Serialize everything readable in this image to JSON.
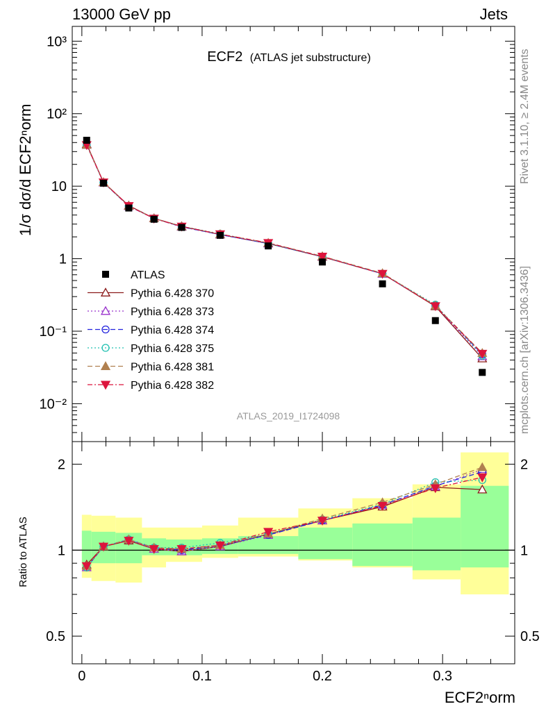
{
  "header": {
    "energy_label": "13000 GeV pp",
    "process_label": "Jets"
  },
  "side_labels": {
    "rivet": "Rivet 3.1.10, ≥ 2.4M events",
    "mcplots": "mcplots.cern.ch [arXiv:1306.3436]"
  },
  "chart_data": [
    {
      "type": "line",
      "panel": "main",
      "title": "ECF2",
      "subtitle": "(ATLAS jet substructure)",
      "ylabel": "1/σ dσ/d ECF2ⁿorm",
      "yscale": "log",
      "ylim": [
        0.003,
        1600
      ],
      "xlim": [
        -0.008,
        0.36
      ],
      "yticks": [
        "10⁻²",
        "10⁻¹",
        "1",
        "10",
        "10²",
        "10³"
      ],
      "watermark": "ATLAS_2019_I1724098",
      "legend_position": "left-middle",
      "x": [
        0.004,
        0.018,
        0.039,
        0.06,
        0.083,
        0.115,
        0.155,
        0.2,
        0.25,
        0.294,
        0.333
      ],
      "data_series": {
        "name": "ATLAS",
        "color": "#000000",
        "values": [
          43,
          11,
          5.0,
          3.5,
          2.7,
          2.1,
          1.5,
          0.9,
          0.45,
          0.14,
          0.027
        ]
      },
      "series": [
        {
          "name": "Pythia 6.428 370",
          "color": "#8b1a1a",
          "dash": "solid",
          "marker": "triangle-up-open",
          "values": [
            38,
            11.3,
            5.4,
            3.6,
            2.8,
            2.15,
            1.62,
            1.06,
            0.62,
            0.22,
            0.042
          ]
        },
        {
          "name": "Pythia 6.428 373",
          "color": "#9932cc",
          "dash": "dotted",
          "marker": "triangle-up-open",
          "values": [
            37,
            11.2,
            5.3,
            3.6,
            2.75,
            2.15,
            1.62,
            1.07,
            0.62,
            0.225,
            0.045
          ]
        },
        {
          "name": "Pythia 6.428 374",
          "color": "#2222dd",
          "dash": "dashed",
          "marker": "circle-open",
          "values": [
            37,
            11.2,
            5.3,
            3.6,
            2.75,
            2.15,
            1.62,
            1.07,
            0.62,
            0.225,
            0.048
          ]
        },
        {
          "name": "Pythia 6.428 375",
          "color": "#20c0b0",
          "dash": "dotted",
          "marker": "circle-open",
          "values": [
            37,
            11.2,
            5.35,
            3.6,
            2.8,
            2.2,
            1.62,
            1.07,
            0.62,
            0.232,
            0.046
          ]
        },
        {
          "name": "Pythia 6.428 381",
          "color": "#b08050",
          "dash": "dashed",
          "marker": "triangle-up-filled",
          "values": [
            37,
            11.3,
            5.35,
            3.6,
            2.78,
            2.18,
            1.65,
            1.08,
            0.63,
            0.225,
            0.05
          ]
        },
        {
          "name": "Pythia 6.428 382",
          "color": "#dc143c",
          "dash": "dashdot",
          "marker": "triangle-down-filled",
          "values": [
            37,
            11.3,
            5.35,
            3.58,
            2.78,
            2.18,
            1.65,
            1.07,
            0.62,
            0.222,
            0.049
          ]
        }
      ]
    },
    {
      "type": "line",
      "panel": "ratio",
      "ylabel": "Ratio to ATLAS",
      "xlabel": "ECF2ⁿorm",
      "yscale": "log",
      "ylim": [
        0.4,
        2.4
      ],
      "yticks": [
        "0.5",
        "1",
        "2"
      ],
      "xticks": [
        "0",
        "0.1",
        "0.2",
        "0.3"
      ],
      "bands": {
        "edges": [
          0,
          0.008,
          0.028,
          0.05,
          0.07,
          0.1,
          0.13,
          0.18,
          0.225,
          0.275,
          0.315,
          0.355
        ],
        "green_lo": [
          0.88,
          0.9,
          0.9,
          0.96,
          0.96,
          0.97,
          0.97,
          0.93,
          0.88,
          0.85,
          0.87
        ],
        "green_hi": [
          1.17,
          1.16,
          1.15,
          1.1,
          1.09,
          1.1,
          1.12,
          1.2,
          1.24,
          1.3,
          1.68
        ],
        "yellow_lo": [
          0.8,
          0.78,
          0.77,
          0.87,
          0.91,
          0.94,
          0.95,
          0.92,
          0.87,
          0.79,
          0.7
        ],
        "yellow_hi": [
          1.33,
          1.32,
          1.3,
          1.2,
          1.2,
          1.22,
          1.3,
          1.4,
          1.52,
          1.7,
          2.2
        ]
      },
      "x": [
        0.004,
        0.018,
        0.039,
        0.06,
        0.083,
        0.115,
        0.155,
        0.2,
        0.25,
        0.294,
        0.333
      ],
      "series": [
        {
          "name": "Pythia 6.428 370",
          "values": [
            0.89,
            1.03,
            1.08,
            1.01,
            0.99,
            1.03,
            1.14,
            1.27,
            1.42,
            1.66,
            1.63
          ]
        },
        {
          "name": "Pythia 6.428 373",
          "values": [
            0.87,
            1.03,
            1.09,
            1.01,
            0.99,
            1.03,
            1.13,
            1.27,
            1.44,
            1.67,
            1.92
          ]
        },
        {
          "name": "Pythia 6.428 374",
          "values": [
            0.87,
            1.03,
            1.09,
            1.02,
            1.0,
            1.04,
            1.13,
            1.27,
            1.44,
            1.68,
            1.88
          ]
        },
        {
          "name": "Pythia 6.428 375",
          "values": [
            0.87,
            1.03,
            1.09,
            1.02,
            1.02,
            1.06,
            1.14,
            1.28,
            1.45,
            1.73,
            1.76
          ]
        },
        {
          "name": "Pythia 6.428 381",
          "values": [
            0.88,
            1.03,
            1.09,
            1.02,
            1.01,
            1.04,
            1.14,
            1.29,
            1.47,
            1.7,
            1.95
          ]
        },
        {
          "name": "Pythia 6.428 382",
          "values": [
            0.88,
            1.03,
            1.08,
            1.01,
            1.01,
            1.04,
            1.16,
            1.27,
            1.43,
            1.65,
            1.8
          ]
        }
      ]
    }
  ]
}
